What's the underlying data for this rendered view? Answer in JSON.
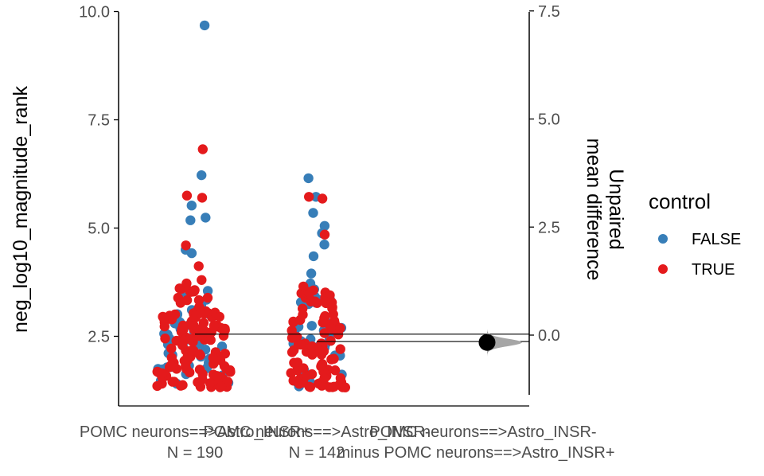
{
  "chart_data": {
    "type": "scatter",
    "subtype": "estimation-plot (swarm + mean difference)",
    "left_axis": {
      "label": "neg_log10_magnitude_rank",
      "ylim": [
        1.0,
        10.0
      ],
      "ticks": [
        2.5,
        5.0,
        7.5,
        10.0
      ],
      "tick_labels": [
        "2.5",
        "5.0",
        "7.5",
        "10.0"
      ]
    },
    "right_axis": {
      "label_line1": "Unpaired",
      "label_line2": "mean difference",
      "ylim": [
        -1.5,
        7.5
      ],
      "ticks": [
        0.0,
        2.5,
        5.0,
        7.5
      ],
      "tick_labels": [
        "0.0",
        "2.5",
        "5.0",
        "7.5"
      ]
    },
    "group_labels": [
      {
        "line1": "POMC neurons==>Astro_INSR+",
        "line2": "N = 190"
      },
      {
        "line1": "POMC neurons==>Astro_INSR-",
        "line2": "N = 142"
      },
      {
        "line1": "POMC neurons==>Astro_INSR-",
        "line2": "minus POMC neurons==>Astro_INSR+"
      }
    ],
    "legend": {
      "title": "control",
      "placement": "right",
      "entries": [
        {
          "label": "FALSE",
          "color": "#377eb8"
        },
        {
          "label": "TRUE",
          "color": "#e41a1c"
        }
      ]
    },
    "groups": [
      {
        "n": 190,
        "mean": 2.55,
        "outliers_false": [
          9.68,
          6.22,
          5.52,
          5.24,
          5.18,
          4.5,
          4.42
        ],
        "outliers_true": [
          6.82,
          5.75,
          5.7,
          4.6,
          4.12,
          3.8,
          3.72
        ]
      },
      {
        "n": 142,
        "mean": 2.38,
        "outliers_false": [
          6.15,
          5.72,
          5.35,
          5.05,
          4.88,
          4.62,
          4.35,
          3.95,
          3.72
        ],
        "outliers_true": [
          5.72,
          5.68,
          4.85,
          3.65
        ]
      }
    ],
    "mean_difference": {
      "value": -0.17,
      "ci": [
        -0.3,
        -0.05
      ],
      "distribution_range": [
        -0.5,
        0.25
      ]
    },
    "grid": false
  }
}
